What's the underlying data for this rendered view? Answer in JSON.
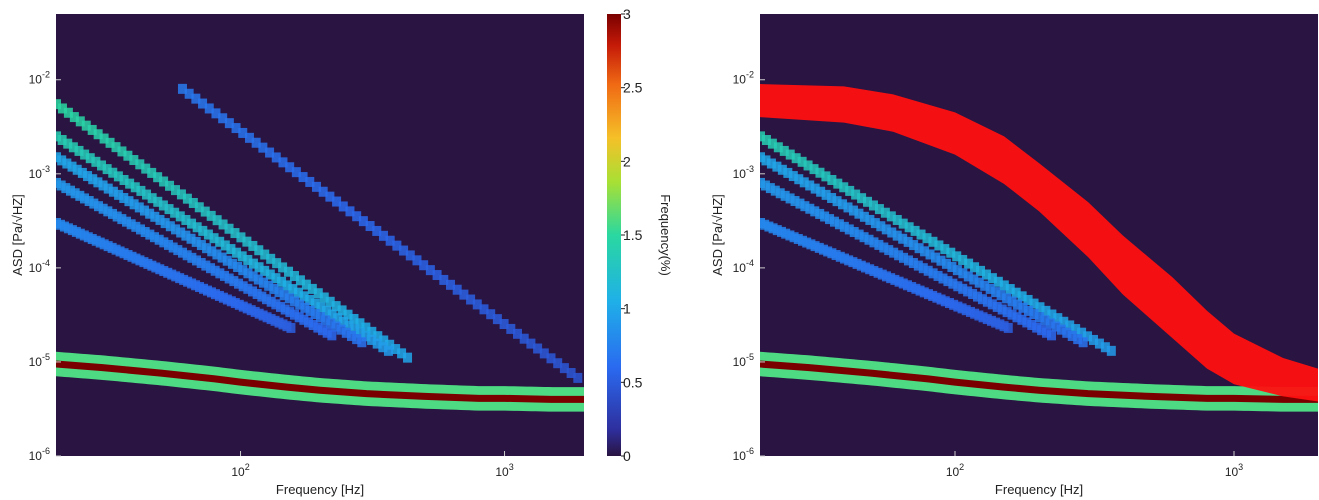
{
  "chart_data": [
    {
      "type": "heatmap",
      "title": "",
      "xlabel": "Frequency [Hz]",
      "ylabel": "ASD [Pa/√HZ]",
      "x_scale": "log",
      "y_scale": "log",
      "xlim": [
        20,
        2000
      ],
      "ylim": [
        1e-06,
        0.05
      ],
      "x_ticks": [
        {
          "value": 100,
          "label": "10^2"
        },
        {
          "value": 1000,
          "label": "10^3"
        }
      ],
      "y_ticks": [
        {
          "value": 1e-06,
          "label": "10^-6"
        },
        {
          "value": 1e-05,
          "label": "10^-5"
        },
        {
          "value": 0.0001,
          "label": "10^-4"
        },
        {
          "value": 0.001,
          "label": "10^-3"
        },
        {
          "value": 0.01,
          "label": "10^-2"
        }
      ],
      "colormap": "jet",
      "background_color": "#2a1442",
      "color_limits": [
        0,
        3
      ],
      "noise_floor": {
        "frequency": [
          20,
          30,
          50,
          80,
          100,
          150,
          200,
          300,
          500,
          800,
          1000,
          1500,
          2000
        ],
        "asd": [
          9.5e-06,
          8.7e-06,
          7.6e-06,
          6.6e-06,
          6.1e-06,
          5.4e-06,
          5e-06,
          4.6e-06,
          4.3e-06,
          4.1e-06,
          4.1e-06,
          4e-06,
          4e-06
        ]
      },
      "density_bands": [
        {
          "f0": 20,
          "a0": 0.0055,
          "f1": 450,
          "a1": 1e-05,
          "level": 1.5
        },
        {
          "f0": 20,
          "a0": 0.0025,
          "f1": 380,
          "a1": 1.2e-05,
          "level": 1.4
        },
        {
          "f0": 20,
          "a0": 0.0015,
          "f1": 300,
          "a1": 1.5e-05,
          "level": 1.0
        },
        {
          "f0": 20,
          "a0": 0.0008,
          "f1": 230,
          "a1": 1.8e-05,
          "level": 0.9
        },
        {
          "f0": 20,
          "a0": 0.0003,
          "f1": 160,
          "a1": 2.2e-05,
          "level": 0.8
        },
        {
          "f0": 60,
          "a0": 0.008,
          "f1": 2000,
          "a1": 6e-06,
          "level": 0.7
        }
      ]
    },
    {
      "type": "heatmap",
      "title": "",
      "xlabel": "Frequency [Hz]",
      "ylabel": "ASD [Pa/√HZ]",
      "x_scale": "log",
      "y_scale": "log",
      "xlim": [
        20,
        2000
      ],
      "ylim": [
        1e-06,
        0.05
      ],
      "x_ticks": [
        {
          "value": 100,
          "label": "10^2"
        },
        {
          "value": 1000,
          "label": "10^3"
        }
      ],
      "y_ticks": [
        {
          "value": 1e-06,
          "label": "10^-6"
        },
        {
          "value": 1e-05,
          "label": "10^-5"
        },
        {
          "value": 0.0001,
          "label": "10^-4"
        },
        {
          "value": 0.001,
          "label": "10^-3"
        },
        {
          "value": 0.01,
          "label": "10^-2"
        }
      ],
      "colormap": "jet",
      "background_color": "#2a1442",
      "color_limits": [
        0,
        3
      ],
      "overlay": {
        "color": "#ff1010",
        "frequency": [
          20,
          40,
          60,
          100,
          150,
          200,
          300,
          400,
          600,
          800,
          1000,
          1500,
          2000
        ],
        "asd_upper": [
          0.009,
          0.0085,
          0.007,
          0.0045,
          0.0025,
          0.0013,
          0.0005,
          0.00022,
          8e-05,
          3.5e-05,
          2e-05,
          1.1e-05,
          8.5e-06
        ],
        "asd_lower": [
          0.004,
          0.0035,
          0.0028,
          0.0016,
          0.00078,
          0.0004,
          0.00013,
          5.2e-05,
          1.8e-05,
          8.5e-06,
          5.8e-06,
          4.3e-06,
          3.8e-06
        ]
      },
      "noise_floor": {
        "frequency": [
          20,
          30,
          50,
          80,
          100,
          150,
          200,
          300,
          500,
          800,
          1000,
          1500,
          2000
        ],
        "asd": [
          9.5e-06,
          8.7e-06,
          7.6e-06,
          6.6e-06,
          6.1e-06,
          5.4e-06,
          5e-06,
          4.6e-06,
          4.3e-06,
          4.1e-06,
          4.1e-06,
          4e-06,
          4e-06
        ]
      },
      "density_bands": [
        {
          "f0": 20,
          "a0": 0.0025,
          "f1": 380,
          "a1": 1.2e-05,
          "level": 1.4
        },
        {
          "f0": 20,
          "a0": 0.0015,
          "f1": 300,
          "a1": 1.5e-05,
          "level": 1.0
        },
        {
          "f0": 20,
          "a0": 0.0008,
          "f1": 230,
          "a1": 1.8e-05,
          "level": 0.9
        },
        {
          "f0": 20,
          "a0": 0.0003,
          "f1": 160,
          "a1": 2.2e-05,
          "level": 0.8
        }
      ]
    }
  ],
  "colorbar": {
    "label": "Frequency(%)",
    "ticks": [
      {
        "value": 0,
        "label": "0"
      },
      {
        "value": 0.5,
        "label": "0.5"
      },
      {
        "value": 1,
        "label": "1"
      },
      {
        "value": 1.5,
        "label": "1.5"
      },
      {
        "value": 2,
        "label": "2"
      },
      {
        "value": 2.5,
        "label": "2.5"
      },
      {
        "value": 3,
        "label": "3"
      }
    ]
  }
}
